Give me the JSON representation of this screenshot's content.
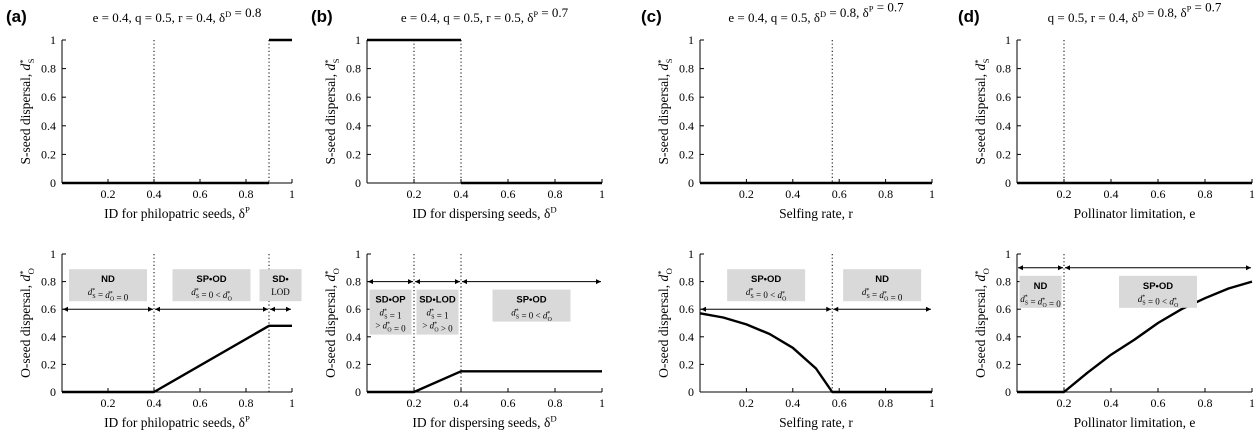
{
  "chart_data": [
    {
      "panel": "(a)",
      "type": "line",
      "params": "e = 0.4,  q = 0.5,  r = 0.4,  δD = 0.8",
      "params_parts": [
        [
          "e",
          " = 0.4, "
        ],
        [
          "q",
          " = 0.5, "
        ],
        [
          "r",
          " = 0.4, "
        ],
        [
          "δ",
          "D",
          " = 0.8"
        ]
      ],
      "top": {
        "ylabel": "S-seed dispersal, d*S",
        "xlabel": "ID for philopatric seeds, δP",
        "xlim": [
          0,
          1
        ],
        "ylim": [
          0,
          1
        ],
        "xticks": [
          "0.2",
          "0.4",
          "0.6",
          "0.8",
          "1"
        ],
        "xtick_values": [
          0.2,
          0.4,
          0.6,
          0.8,
          1
        ],
        "yticks": [
          "0",
          "0.2",
          "0.4",
          "0.6",
          "0.8",
          "1"
        ],
        "ytick_values": [
          0,
          0.2,
          0.4,
          0.6,
          0.8,
          1
        ],
        "thresholds": [
          0.4,
          0.9
        ],
        "segments": [
          [
            [
              0,
              0
            ],
            [
              0.9,
              0
            ]
          ],
          [
            [
              0.9,
              1
            ],
            [
              1,
              1
            ]
          ]
        ]
      },
      "bottom": {
        "ylabel": "O-seed dispersal, d*O",
        "xlabel": "ID for philopatric seeds, δP",
        "xlim": [
          0,
          1
        ],
        "ylim": [
          0,
          1
        ],
        "xticks": [
          "0.2",
          "0.4",
          "0.6",
          "0.8",
          "1"
        ],
        "xtick_values": [
          0.2,
          0.4,
          0.6,
          0.8,
          1
        ],
        "yticks": [
          "0",
          "0.2",
          "0.4",
          "0.6",
          "0.8",
          "1"
        ],
        "ytick_values": [
          0,
          0.2,
          0.4,
          0.6,
          0.8,
          1
        ],
        "thresholds": [
          0.4,
          0.9
        ],
        "segments": [
          [
            [
              0,
              0
            ],
            [
              0.4,
              0
            ],
            [
              0.9,
              0.48
            ],
            [
              1,
              0.48
            ]
          ]
        ],
        "regions_arrow_y": 0.6,
        "regions": [
          {
            "label": "ND",
            "cond": "d*S = d*O = 0",
            "x0": 0,
            "x1": 0.4
          },
          {
            "label": "SP•OD",
            "cond": "d*S = 0 < d*O",
            "x0": 0.4,
            "x1": 0.9
          },
          {
            "label": "SD•",
            "cond": "LOD",
            "x0": 0.9,
            "x1": 1
          }
        ]
      }
    },
    {
      "panel": "(b)",
      "type": "line",
      "params": "e = 0.4,  q = 0.5,  r = 0.5,  δP = 0.7",
      "top": {
        "ylabel": "S-seed dispersal, d*S",
        "xlabel": "ID for dispersing seeds, δD",
        "xlim": [
          0,
          1
        ],
        "ylim": [
          0,
          1
        ],
        "xticks": [
          "0.2",
          "0.4",
          "0.6",
          "0.8",
          "1"
        ],
        "xtick_values": [
          0.2,
          0.4,
          0.6,
          0.8,
          1
        ],
        "yticks": [
          "0",
          "0.2",
          "0.4",
          "0.6",
          "0.8",
          "1"
        ],
        "ytick_values": [
          0,
          0.2,
          0.4,
          0.6,
          0.8,
          1
        ],
        "thresholds": [
          0.2,
          0.4
        ],
        "segments": [
          [
            [
              0,
              1
            ],
            [
              0.4,
              1
            ]
          ],
          [
            [
              0.4,
              0
            ],
            [
              1,
              0
            ]
          ]
        ]
      },
      "bottom": {
        "ylabel": "O-seed dispersal, d*O",
        "xlabel": "ID for dispersing seeds, δD",
        "xlim": [
          0,
          1
        ],
        "ylim": [
          0,
          1
        ],
        "xticks": [
          "0.2",
          "0.4",
          "0.6",
          "0.8",
          "1"
        ],
        "xtick_values": [
          0.2,
          0.4,
          0.6,
          0.8,
          1
        ],
        "yticks": [
          "0",
          "0.2",
          "0.4",
          "0.6",
          "0.8",
          "1"
        ],
        "ytick_values": [
          0,
          0.2,
          0.4,
          0.6,
          0.8,
          1
        ],
        "thresholds": [
          0.2,
          0.4
        ],
        "segments": [
          [
            [
              0,
              0
            ],
            [
              0.2,
              0
            ],
            [
              0.4,
              0.15
            ],
            [
              1,
              0.15
            ]
          ]
        ],
        "regions_arrow_y": 0.8,
        "regions": [
          {
            "label": "SD•OP",
            "cond": "d*S = 1",
            "cond2": "> d*O = 0",
            "x0": 0,
            "x1": 0.2
          },
          {
            "label": "SD•LOD",
            "cond": "d*S = 1",
            "cond2": "> d*O > 0",
            "x0": 0.2,
            "x1": 0.4
          },
          {
            "label": "SP•OD",
            "cond": "d*S = 0 < d*O",
            "x0": 0.4,
            "x1": 1
          }
        ]
      }
    },
    {
      "panel": "(c)",
      "type": "line",
      "params": "e = 0.4,  q = 0.5,  δD = 0.8,  δP = 0.7",
      "top": {
        "ylabel": "S-seed dispersal, d*S",
        "xlabel": "Selfing rate, r",
        "xlim": [
          0,
          1
        ],
        "ylim": [
          0,
          1
        ],
        "xticks": [
          "0.2",
          "0.4",
          "0.6",
          "0.8",
          "1"
        ],
        "xtick_values": [
          0.2,
          0.4,
          0.6,
          0.8,
          1
        ],
        "yticks": [
          "0",
          "0.2",
          "0.4",
          "0.6",
          "0.8",
          "1"
        ],
        "ytick_values": [
          0,
          0.2,
          0.4,
          0.6,
          0.8,
          1
        ],
        "thresholds": [
          0.57
        ],
        "segments": [
          [
            [
              0,
              0
            ],
            [
              1,
              0
            ]
          ]
        ]
      },
      "bottom": {
        "ylabel": "O-seed dispersal, d*O",
        "xlabel": "Selfing rate, r",
        "xlim": [
          0,
          1
        ],
        "ylim": [
          0,
          1
        ],
        "xticks": [
          "0.2",
          "0.4",
          "0.6",
          "0.8",
          "1"
        ],
        "xtick_values": [
          0.2,
          0.4,
          0.6,
          0.8,
          1
        ],
        "yticks": [
          "0",
          "0.2",
          "0.4",
          "0.6",
          "0.8",
          "1"
        ],
        "ytick_values": [
          0,
          0.2,
          0.4,
          0.6,
          0.8,
          1
        ],
        "thresholds": [
          0.57
        ],
        "segments": [
          [
            [
              0,
              0.57
            ],
            [
              0.1,
              0.54
            ],
            [
              0.2,
              0.49
            ],
            [
              0.3,
              0.42
            ],
            [
              0.4,
              0.32
            ],
            [
              0.5,
              0.17
            ],
            [
              0.57,
              0
            ],
            [
              1,
              0
            ]
          ]
        ],
        "regions_arrow_y": 0.6,
        "regions": [
          {
            "label": "SP•OD",
            "cond": "d*S = 0 < d*O",
            "x0": 0,
            "x1": 0.57
          },
          {
            "label": "ND",
            "cond": "d*S = d*O = 0",
            "x0": 0.57,
            "x1": 1
          }
        ]
      }
    },
    {
      "panel": "(d)",
      "type": "line",
      "params": "q = 0.5,  r = 0.4,  δD = 0.8,  δP = 0.7",
      "top": {
        "ylabel": "S-seed dispersal, d*S",
        "xlabel": "Pollinator limitation, e",
        "xlim": [
          0,
          1
        ],
        "ylim": [
          0,
          1
        ],
        "xticks": [
          "0.2",
          "0.4",
          "0.6",
          "0.8",
          "1"
        ],
        "xtick_values": [
          0.2,
          0.4,
          0.6,
          0.8,
          1
        ],
        "yticks": [
          "0",
          "0.2",
          "0.4",
          "0.6",
          "0.8",
          "1"
        ],
        "ytick_values": [
          0,
          0.2,
          0.4,
          0.6,
          0.8,
          1
        ],
        "thresholds": [
          0.2
        ],
        "segments": [
          [
            [
              0,
              0
            ],
            [
              1,
              0
            ]
          ]
        ]
      },
      "bottom": {
        "ylabel": "O-seed dispersal, d*O",
        "xlabel": "Pollinator limitation, e",
        "xlim": [
          0,
          1
        ],
        "ylim": [
          0,
          1
        ],
        "xticks": [
          "0.2",
          "0.4",
          "0.6",
          "0.8",
          "1"
        ],
        "xtick_values": [
          0.2,
          0.4,
          0.6,
          0.8,
          1
        ],
        "yticks": [
          "0",
          "0.2",
          "0.4",
          "0.6",
          "0.8",
          "1"
        ],
        "ytick_values": [
          0,
          0.2,
          0.4,
          0.6,
          0.8,
          1
        ],
        "thresholds": [
          0.2
        ],
        "segments": [
          [
            [
              0,
              0
            ],
            [
              0.2,
              0
            ],
            [
              0.3,
              0.14
            ],
            [
              0.4,
              0.27
            ],
            [
              0.5,
              0.38
            ],
            [
              0.6,
              0.5
            ],
            [
              0.7,
              0.6
            ],
            [
              0.8,
              0.68
            ],
            [
              0.9,
              0.75
            ],
            [
              1,
              0.8
            ]
          ]
        ],
        "regions_arrow_y": 0.9,
        "regions": [
          {
            "label": "ND",
            "cond": "d*S = d*O = 0",
            "x0": 0,
            "x1": 0.2
          },
          {
            "label": "SP•OD",
            "cond": "d*S = 0 < d*O",
            "x0": 0.2,
            "x1": 1
          }
        ]
      }
    }
  ]
}
